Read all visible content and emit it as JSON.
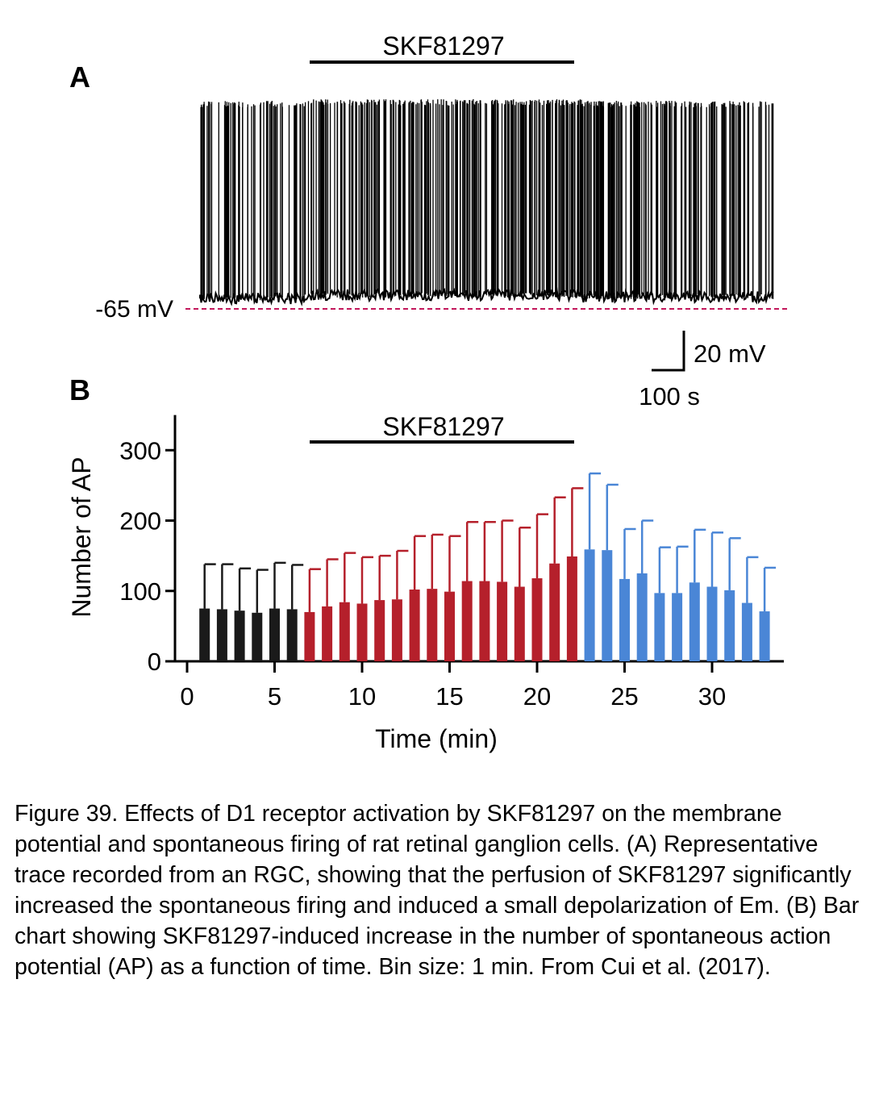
{
  "chart_data": [
    {
      "type": "line",
      "panel_label": "A",
      "bar_label": "SKF81297",
      "baseline_label": "-65 mV",
      "scalebar_y_label": "20 mV",
      "scalebar_x_label": "100 s",
      "colors": {
        "trace": "#000000",
        "baseline": "#c2185b"
      }
    },
    {
      "type": "bar",
      "panel_label": "B",
      "bar_label": "SKF81297",
      "xlabel": "Time (min)",
      "ylabel": "Number of AP",
      "ylim": [
        0,
        350
      ],
      "yticks": [
        0,
        100,
        200,
        300
      ],
      "xlim": [
        0,
        34
      ],
      "xticks": [
        0,
        5,
        10,
        15,
        20,
        25,
        30
      ],
      "drug_period_min": [
        7,
        22
      ],
      "colors": {
        "control": "#1a1a1a",
        "drug": "#b5202b",
        "washout": "#4a86d6"
      },
      "x": [
        1,
        2,
        3,
        4,
        5,
        6,
        7,
        8,
        9,
        10,
        11,
        12,
        13,
        14,
        15,
        16,
        17,
        18,
        19,
        20,
        21,
        22,
        23,
        24,
        25,
        26,
        27,
        28,
        29,
        30,
        31,
        32,
        33
      ],
      "values": [
        75,
        74,
        72,
        69,
        75,
        74,
        70,
        78,
        84,
        82,
        87,
        88,
        102,
        103,
        99,
        114,
        114,
        113,
        106,
        118,
        139,
        149,
        159,
        158,
        117,
        125,
        97,
        97,
        112,
        106,
        101,
        83,
        71
      ],
      "error": [
        63,
        64,
        60,
        61,
        65,
        63,
        61,
        67,
        70,
        66,
        63,
        69,
        76,
        77,
        79,
        84,
        84,
        87,
        84,
        91,
        94,
        97,
        108,
        93,
        71,
        75,
        65,
        66,
        75,
        77,
        74,
        65,
        62
      ],
      "groups": [
        "control",
        "control",
        "control",
        "control",
        "control",
        "control",
        "drug",
        "drug",
        "drug",
        "drug",
        "drug",
        "drug",
        "drug",
        "drug",
        "drug",
        "drug",
        "drug",
        "drug",
        "drug",
        "drug",
        "drug",
        "drug",
        "washout",
        "washout",
        "washout",
        "washout",
        "washout",
        "washout",
        "washout",
        "washout",
        "washout",
        "washout",
        "washout"
      ]
    }
  ],
  "caption": "Figure 39. Effects of D1 receptor activation by SKF81297 on the membrane potential and spontaneous firing of rat retinal ganglion cells. (A) Representative trace recorded from an RGC, showing that the perfusion of SKF81297 significantly increased the spontaneous firing and induced a small depolarization of Em. (B) Bar chart showing SKF81297-induced increase in the number of spontaneous action potential (AP) as a function of time. Bin size: 1 min. From Cui et al. (2017)."
}
